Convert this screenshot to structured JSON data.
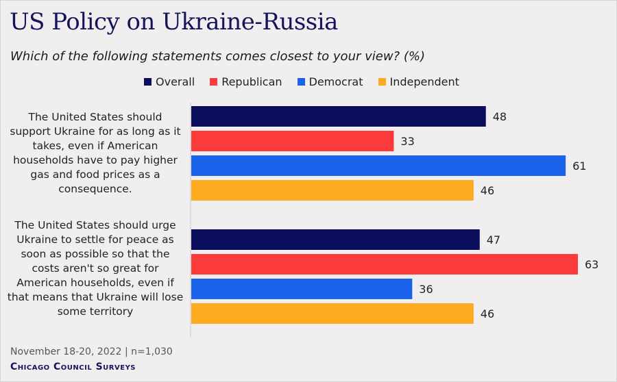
{
  "title": "US Policy on Ukraine-Russia",
  "subtitle": "Which of the following statements comes closest to your view? (%)",
  "footer": {
    "date": "November 18-20, 2022 | n=1,030",
    "source": "Chicago Council Surveys"
  },
  "colors": {
    "Overall": "#0b0e5c",
    "Republican": "#fb3b3b",
    "Democrat": "#1b62ea",
    "Independent": "#feaa1e"
  },
  "chart_data": {
    "type": "bar",
    "orientation": "horizontal",
    "title": "US Policy on Ukraine-Russia",
    "subtitle": "Which of the following statements comes closest to your view? (%)",
    "xlabel": "",
    "ylabel": "",
    "xlim": [
      0,
      63
    ],
    "grid": false,
    "legend_position": "top",
    "categories": [
      "The United States should support Ukraine for as long as it takes, even if American households have to pay higher gas and food prices as a consequence.",
      "The United States should urge Ukraine to settle for peace as soon as possible so that the costs aren't so great for American households, even if that means that Ukraine will lose some territory"
    ],
    "series": [
      {
        "name": "Overall",
        "values": [
          48,
          47
        ]
      },
      {
        "name": "Republican",
        "values": [
          33,
          63
        ]
      },
      {
        "name": "Democrat",
        "values": [
          61,
          36
        ]
      },
      {
        "name": "Independent",
        "values": [
          46,
          46
        ]
      }
    ]
  }
}
